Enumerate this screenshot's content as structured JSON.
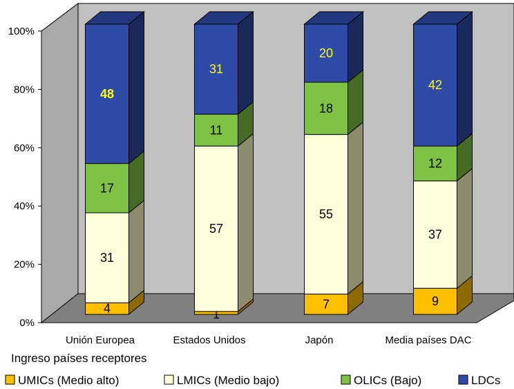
{
  "chart_data": {
    "type": "bar",
    "stacked": true,
    "three_d": true,
    "percent_axis": true,
    "xlabel": "Ingreso países receptores",
    "ylabel": "",
    "ylim": [
      0,
      100
    ],
    "yticks": [
      "0%",
      "20%",
      "40%",
      "60%",
      "80%",
      "100%"
    ],
    "categories": [
      "Unión Europea",
      "Estados Unidos",
      "Japón",
      "Media países DAC"
    ],
    "series": [
      {
        "name": "UMICs (Medio alto)",
        "values": [
          4,
          1,
          7,
          9
        ],
        "color": "#FFC000",
        "label_color": "#000000"
      },
      {
        "name": "LMICs (Medio bajo)",
        "values": [
          31,
          57,
          55,
          37
        ],
        "color": "#FFFFDC",
        "label_color": "#000000"
      },
      {
        "name": "OLICs (Bajo)",
        "values": [
          17,
          11,
          18,
          12
        ],
        "color": "#7DC242",
        "label_color": "#000000"
      },
      {
        "name": "LDCs",
        "values": [
          48,
          31,
          20,
          42
        ],
        "color": "#2E4BA8",
        "label_color": "#FFFF00"
      }
    ],
    "emphasized_labels": [
      {
        "series": 3,
        "category": 0
      }
    ],
    "grid": false,
    "legend_position": "bottom",
    "wall_color": "#C0C0C0",
    "floor_color": "#808080"
  }
}
